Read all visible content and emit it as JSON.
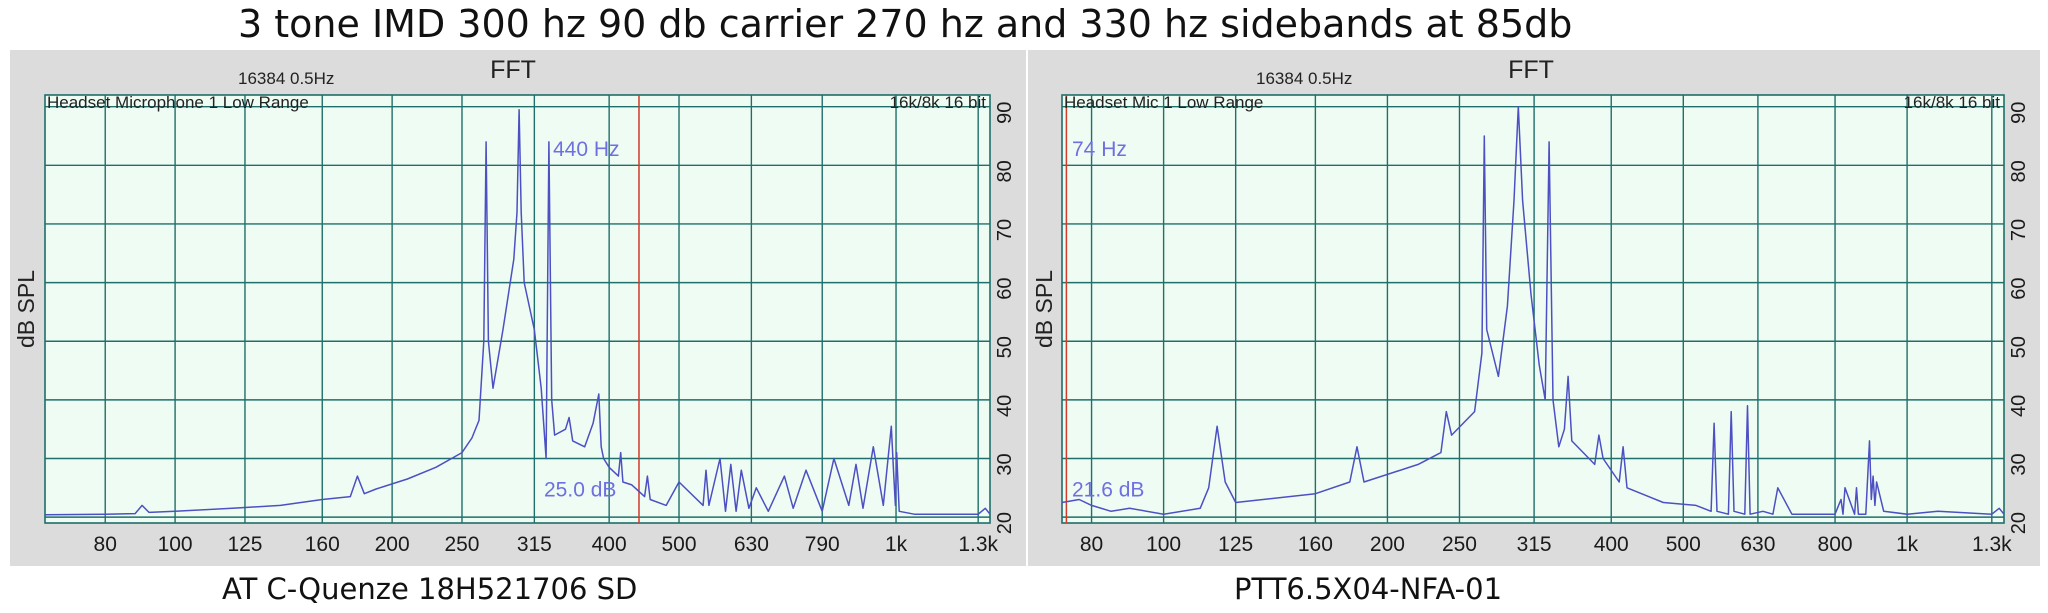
{
  "title": "3 tone IMD 300 hz 90 db carrier 270 hz and 330 hz sidebands at 85db",
  "colors": {
    "plot_bg": "#effcf4",
    "grid": "#1f6f6a",
    "trace": "#4c50c2",
    "label": "#6f6fe0",
    "cursor": "#d23a2a",
    "frame_bg": "#dcdcdc"
  },
  "chart_data": [
    {
      "type": "line",
      "title": "FFT",
      "fft_info": "16384  0.5Hz",
      "input_label": "Headset Microphone 1 Low Range",
      "rate_label": "16k/8k 16 bit",
      "ylabel": "dB SPL",
      "cursor_label": "440 Hz",
      "level_label": "25.0 dB",
      "caption": "AT C-Quenze 18H521706 SD",
      "cursor_freq": 440,
      "x_scale": "log",
      "xlim": [
        66,
        1350
      ],
      "ylim": [
        19,
        92
      ],
      "x_ticks": [
        80,
        100,
        125,
        160,
        200,
        250,
        315,
        400,
        500,
        630,
        790,
        1000,
        1300
      ],
      "x_tick_labels": [
        "80",
        "100",
        "125",
        "160",
        "200",
        "250",
        "315",
        "400",
        "500",
        "630",
        "790",
        "1k",
        "1.3k"
      ],
      "y_ticks": [
        20,
        30,
        40,
        50,
        60,
        70,
        80,
        90
      ],
      "y_tick_labels": [
        "20",
        "30",
        "40",
        "50",
        "60",
        "70",
        "80",
        "90"
      ],
      "series": [
        {
          "x": [
            66,
            80,
            88,
            90,
            92,
            100,
            120,
            140,
            160,
            175,
            179,
            183,
            190,
            210,
            230,
            250,
            258,
            264,
            268,
            270,
            272,
            276,
            285,
            295,
            298,
            300,
            302,
            305,
            315,
            322,
            327,
            330,
            333,
            336,
            348,
            352,
            356,
            370,
            380,
            387,
            390,
            393,
            400,
            412,
            415,
            418,
            430,
            448,
            452,
            456,
            480,
            500,
            540,
            545,
            550,
            570,
            580,
            590,
            600,
            610,
            625,
            640,
            665,
            700,
            720,
            750,
            790,
            820,
            860,
            880,
            900,
            930,
            960,
            985,
            993,
            998,
            1002,
            1010,
            1060,
            1300,
            1330,
            1350
          ],
          "y": [
            20.4,
            20.5,
            20.6,
            22,
            20.8,
            21,
            21.5,
            22,
            23,
            23.5,
            27,
            24,
            24.8,
            26.5,
            28.5,
            31,
            33.5,
            36.5,
            50,
            84,
            50,
            42,
            52,
            64,
            72,
            89.5,
            72,
            60,
            52,
            42,
            30,
            84,
            40,
            34,
            35,
            37,
            33,
            32,
            36,
            41,
            32,
            30,
            28.5,
            27,
            31,
            26,
            25.5,
            23.5,
            27,
            23,
            22,
            26,
            22,
            28,
            22,
            30,
            21,
            29,
            21,
            28,
            21.5,
            25,
            21,
            27,
            21.5,
            28,
            21,
            30,
            22,
            29,
            21.5,
            32,
            22,
            35.5,
            27,
            22,
            31,
            21,
            20.5,
            20.5,
            21.5,
            20.5
          ]
        }
      ]
    },
    {
      "type": "line",
      "title": "FFT",
      "fft_info": "16384  0.5Hz",
      "input_label": "Headset Mic 1 Low Range",
      "rate_label": "16k/8k 16 bit",
      "ylabel": "dB SPL",
      "cursor_label": "74 Hz",
      "level_label": "21.6 dB",
      "caption": "PTT6.5X04-NFA-01",
      "cursor_freq": 74,
      "x_scale": "log",
      "xlim": [
        73,
        1350
      ],
      "ylim": [
        19,
        92
      ],
      "x_ticks": [
        80,
        100,
        125,
        160,
        200,
        250,
        315,
        400,
        500,
        630,
        800,
        1000,
        1300
      ],
      "x_tick_labels": [
        "80",
        "100",
        "125",
        "160",
        "200",
        "250",
        "315",
        "400",
        "500",
        "630",
        "800",
        "1k",
        "1.3k"
      ],
      "y_ticks": [
        20,
        30,
        40,
        50,
        60,
        70,
        80,
        90
      ],
      "y_tick_labels": [
        "20",
        "30",
        "40",
        "50",
        "60",
        "70",
        "80",
        "90"
      ],
      "series": [
        {
          "x": [
            73,
            77,
            80,
            85,
            90,
            100,
            112,
            115,
            118,
            121,
            125,
            160,
            178,
            182,
            186,
            220,
            236,
            240,
            244,
            262,
            268,
            270,
            272,
            282,
            290,
            296,
            300,
            304,
            312,
            320,
            326,
            330,
            334,
            340,
            346,
            350,
            354,
            380,
            385,
            390,
            410,
            415,
            420,
            470,
            520,
            545,
            550,
            555,
            575,
            580,
            585,
            605,
            610,
            615,
            640,
            660,
            670,
            700,
            800,
            815,
            820,
            825,
            850,
            855,
            860,
            880,
            890,
            895,
            900,
            905,
            910,
            930,
            1000,
            1100,
            1300,
            1330,
            1350
          ],
          "y": [
            22.5,
            23,
            22,
            21,
            21.5,
            20.5,
            21.5,
            25,
            35.5,
            26,
            22.5,
            24,
            26,
            32,
            26,
            29,
            31,
            38,
            34,
            38,
            48,
            85,
            52,
            44,
            56,
            74,
            90,
            74,
            58,
            46,
            40,
            84,
            40,
            32,
            35,
            44,
            33,
            29,
            34,
            30,
            26,
            32,
            25,
            22.5,
            22,
            21,
            36,
            21,
            20.5,
            38,
            21,
            20.5,
            39,
            20.5,
            21,
            20.5,
            25,
            20.5,
            20.5,
            23,
            20.5,
            25,
            20.5,
            25,
            20.5,
            20.5,
            33,
            23,
            27,
            22,
            26,
            21,
            20.5,
            21,
            20.5,
            21.5,
            20.5
          ]
        }
      ]
    }
  ]
}
